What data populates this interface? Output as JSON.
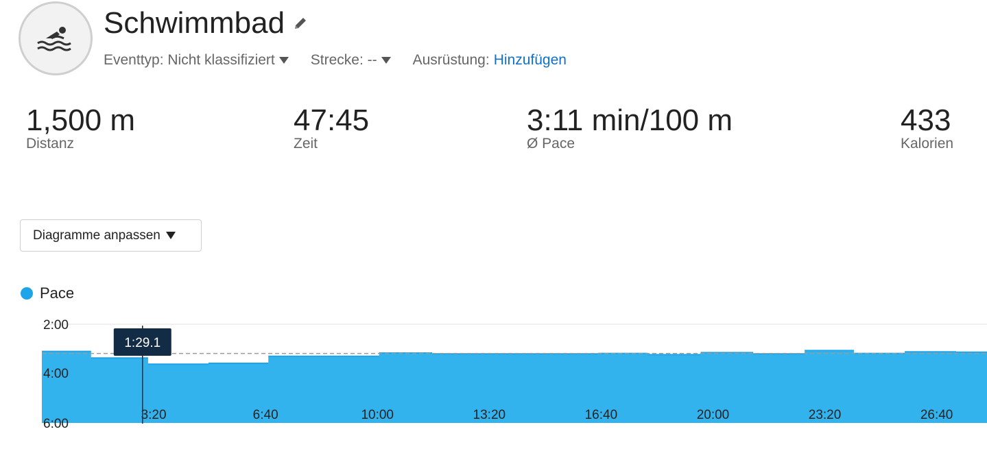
{
  "header": {
    "title": "Schwimmbad",
    "activity_icon": "swimmer-icon",
    "edit_icon": "pencil-icon",
    "event_type_label": "Eventtyp: Nicht klassifiziert",
    "course_label": "Strecke: --",
    "gear_label": "Ausrüstung:",
    "gear_link": "Hinzufügen"
  },
  "stats": [
    {
      "value": "1,500 m",
      "label": "Distanz"
    },
    {
      "value": "47:45",
      "label": "Zeit"
    },
    {
      "value": "3:11 min/100 m",
      "label": "Ø Pace"
    },
    {
      "value": "433",
      "label": "Kalorien"
    }
  ],
  "customize_button": {
    "label": "Diagramme anpassen"
  },
  "colors": {
    "series": "#1ea4e9",
    "series_fill": "#33b3ee",
    "tooltip_bg": "#132c45",
    "link": "#1170c6"
  },
  "chart_data": {
    "type": "area",
    "legend": [
      {
        "name": "Pace",
        "color": "#1ea4e9"
      }
    ],
    "y_ticks": [
      "2:00",
      "4:00",
      "6:00"
    ],
    "ylim_seconds": [
      120,
      360
    ],
    "y_inverted": true,
    "x_ticks": [
      "3:20",
      "6:40",
      "10:00",
      "13:20",
      "16:40",
      "20:00",
      "23:20",
      "26:40"
    ],
    "x_tick_seconds": [
      200,
      400,
      600,
      800,
      1000,
      1200,
      1400,
      1600
    ],
    "xlim_seconds": [
      0,
      1690
    ],
    "average_pace_seconds": 191,
    "tooltip": {
      "x_seconds": 180,
      "value": "1:29.1"
    },
    "series": [
      {
        "name": "Pace",
        "steps": [
          {
            "start": 0,
            "end": 88,
            "pace_seconds": 186
          },
          {
            "start": 88,
            "end": 190,
            "pace_seconds": 202
          },
          {
            "start": 190,
            "end": 298,
            "pace_seconds": 217
          },
          {
            "start": 298,
            "end": 405,
            "pace_seconds": 215
          },
          {
            "start": 405,
            "end": 603,
            "pace_seconds": 198
          },
          {
            "start": 603,
            "end": 698,
            "pace_seconds": 190
          },
          {
            "start": 698,
            "end": 995,
            "pace_seconds": 192
          },
          {
            "start": 995,
            "end": 1083,
            "pace_seconds": 191
          },
          {
            "start": 1083,
            "end": 1178,
            "pace_seconds": 194
          },
          {
            "start": 1178,
            "end": 1272,
            "pace_seconds": 189
          },
          {
            "start": 1272,
            "end": 1364,
            "pace_seconds": 192
          },
          {
            "start": 1364,
            "end": 1452,
            "pace_seconds": 184
          },
          {
            "start": 1452,
            "end": 1543,
            "pace_seconds": 191
          },
          {
            "start": 1543,
            "end": 1635,
            "pace_seconds": 187
          },
          {
            "start": 1635,
            "end": 1690,
            "pace_seconds": 188
          }
        ]
      }
    ]
  }
}
